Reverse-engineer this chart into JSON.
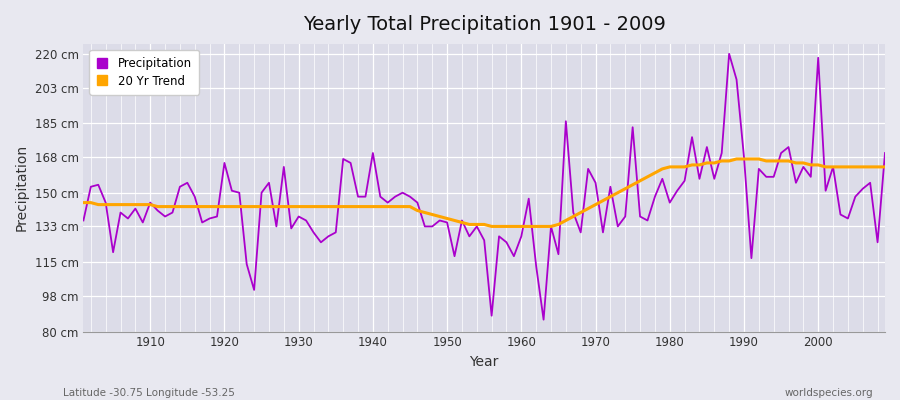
{
  "title": "Yearly Total Precipitation 1901 - 2009",
  "xlabel": "Year",
  "ylabel": "Precipitation",
  "lat_lon_label": "Latitude -30.75 Longitude -53.25",
  "watermark": "worldspecies.org",
  "line_color": "#AA00CC",
  "trend_color": "#FFA500",
  "background_color": "#E8E8F0",
  "plot_bg_color": "#DCDCE8",
  "ylim": [
    80,
    225
  ],
  "yticks": [
    80,
    98,
    115,
    133,
    150,
    168,
    185,
    203,
    220
  ],
  "ytick_labels": [
    "80 cm",
    "98 cm",
    "115 cm",
    "133 cm",
    "150 cm",
    "168 cm",
    "185 cm",
    "203 cm",
    "220 cm"
  ],
  "years": [
    1901,
    1902,
    1903,
    1904,
    1905,
    1906,
    1907,
    1908,
    1909,
    1910,
    1911,
    1912,
    1913,
    1914,
    1915,
    1916,
    1917,
    1918,
    1919,
    1920,
    1921,
    1922,
    1923,
    1924,
    1925,
    1926,
    1927,
    1928,
    1929,
    1930,
    1931,
    1932,
    1933,
    1934,
    1935,
    1936,
    1937,
    1938,
    1939,
    1940,
    1941,
    1942,
    1943,
    1944,
    1945,
    1946,
    1947,
    1948,
    1949,
    1950,
    1951,
    1952,
    1953,
    1954,
    1955,
    1956,
    1957,
    1958,
    1959,
    1960,
    1961,
    1962,
    1963,
    1964,
    1965,
    1966,
    1967,
    1968,
    1969,
    1970,
    1971,
    1972,
    1973,
    1974,
    1975,
    1976,
    1977,
    1978,
    1979,
    1980,
    1981,
    1982,
    1983,
    1984,
    1985,
    1986,
    1987,
    1988,
    1989,
    1990,
    1991,
    1992,
    1993,
    1994,
    1995,
    1996,
    1997,
    1998,
    1999,
    2000,
    2001,
    2002,
    2003,
    2004,
    2005,
    2006,
    2007,
    2008,
    2009
  ],
  "precip": [
    136,
    153,
    154,
    145,
    120,
    140,
    137,
    142,
    135,
    145,
    141,
    138,
    140,
    153,
    155,
    148,
    135,
    137,
    138,
    165,
    151,
    150,
    114,
    101,
    150,
    155,
    133,
    163,
    132,
    138,
    136,
    130,
    125,
    128,
    130,
    167,
    165,
    148,
    148,
    170,
    148,
    145,
    148,
    150,
    148,
    145,
    133,
    133,
    136,
    135,
    118,
    136,
    128,
    133,
    126,
    88,
    128,
    125,
    118,
    128,
    147,
    113,
    86,
    133,
    119,
    186,
    140,
    130,
    162,
    155,
    130,
    153,
    133,
    138,
    183,
    138,
    136,
    148,
    157,
    145,
    151,
    156,
    178,
    157,
    173,
    157,
    170,
    220,
    207,
    168,
    117,
    162,
    158,
    158,
    170,
    173,
    155,
    163,
    158,
    218,
    151,
    163,
    139,
    137,
    148,
    152,
    155,
    125,
    170
  ],
  "trend": [
    145,
    145,
    144,
    144,
    144,
    144,
    144,
    144,
    144,
    144,
    143,
    143,
    143,
    143,
    143,
    143,
    143,
    143,
    143,
    143,
    143,
    143,
    143,
    143,
    143,
    143,
    143,
    143,
    143,
    143,
    143,
    143,
    143,
    143,
    143,
    143,
    143,
    143,
    143,
    143,
    143,
    143,
    143,
    143,
    143,
    141,
    140,
    139,
    138,
    137,
    136,
    135,
    134,
    134,
    134,
    133,
    133,
    133,
    133,
    133,
    133,
    133,
    133,
    133,
    134,
    136,
    138,
    140,
    142,
    144,
    146,
    148,
    150,
    152,
    154,
    156,
    158,
    160,
    162,
    163,
    163,
    163,
    164,
    164,
    165,
    165,
    166,
    166,
    167,
    167,
    167,
    167,
    166,
    166,
    166,
    166,
    165,
    165,
    164,
    164,
    163,
    163,
    163,
    163,
    163,
    163,
    163,
    163,
    163
  ]
}
